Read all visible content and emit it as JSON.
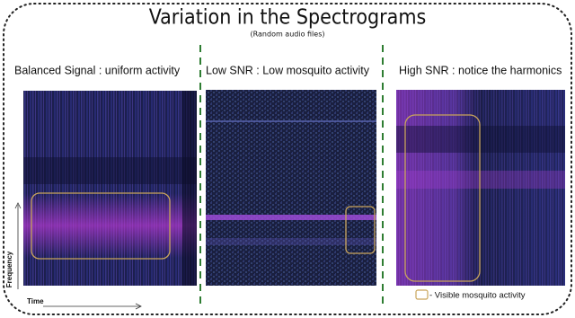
{
  "header": {
    "title": "Variation in the Spectrograms",
    "subtitle": "(Random audio files)"
  },
  "panels": [
    {
      "label": "Balanced Signal : uniform activity"
    },
    {
      "label": "Low SNR : Low mosquito activity"
    },
    {
      "label": "High SNR : notice the harmonics"
    }
  ],
  "axes": {
    "frequency": "Frequency",
    "time": "Time"
  },
  "legend": {
    "label": "- Visible mosquito activity"
  }
}
